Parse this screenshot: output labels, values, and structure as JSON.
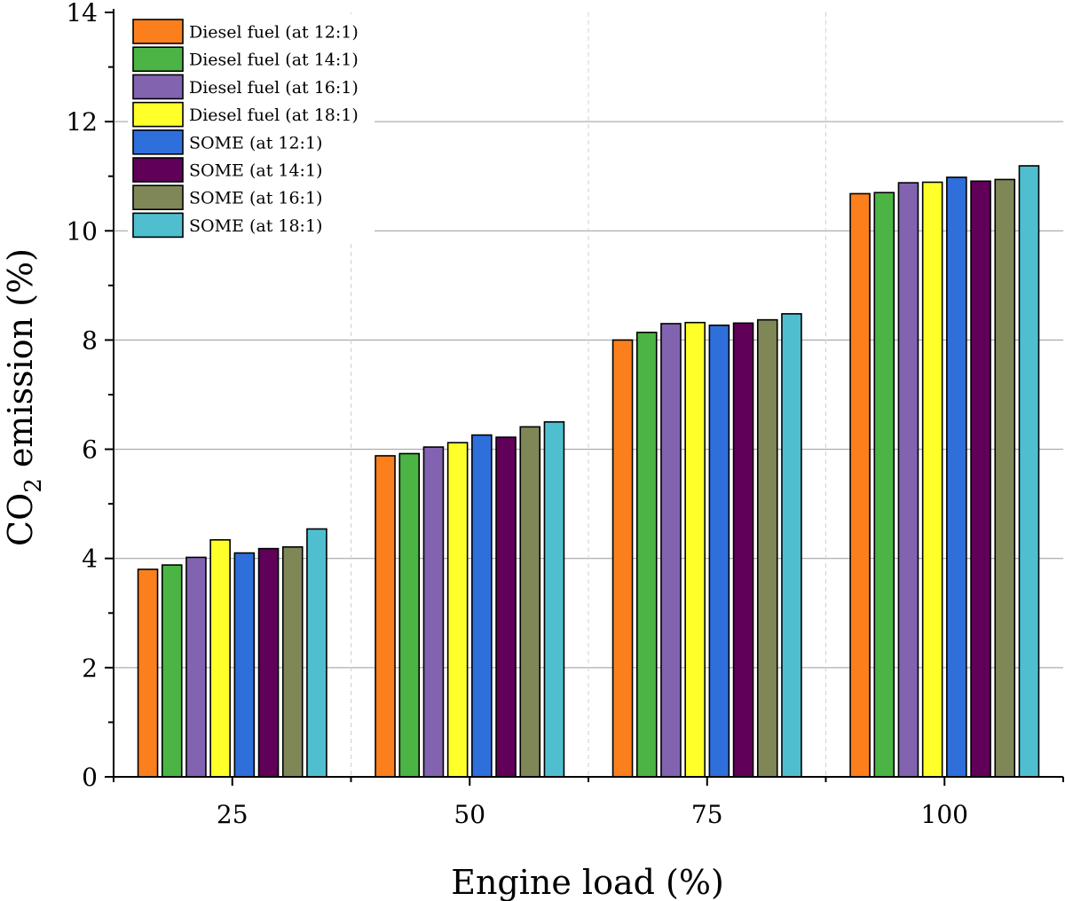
{
  "chart_data": {
    "type": "bar",
    "title": "",
    "xlabel": "Engine load (%)",
    "ylabel_main": "CO",
    "ylabel_sub": "2",
    "ylabel_rest": " emission (%)",
    "categories": [
      "25",
      "50",
      "75",
      "100"
    ],
    "ylim": [
      0,
      14
    ],
    "yticks": [
      "0",
      "2",
      "4",
      "6",
      "8",
      "10",
      "12",
      "14"
    ],
    "grid": true,
    "legend_position": "top-left",
    "series": [
      {
        "name": "Diesel fuel (at 12:1)",
        "color": "#fb7f1c",
        "values": [
          3.8,
          5.88,
          8.0,
          10.68
        ]
      },
      {
        "name": "Diesel fuel (at 14:1)",
        "color": "#4bb444",
        "values": [
          3.88,
          5.92,
          8.14,
          10.7
        ]
      },
      {
        "name": "Diesel fuel (at 16:1)",
        "color": "#8163b0",
        "values": [
          4.02,
          6.04,
          8.3,
          10.88
        ]
      },
      {
        "name": "Diesel fuel (at 18:1)",
        "color": "#ffff29",
        "values": [
          4.34,
          6.12,
          8.32,
          10.89
        ]
      },
      {
        "name": "SOME (at 12:1)",
        "color": "#2f6fdb",
        "values": [
          4.1,
          6.26,
          8.27,
          10.98
        ]
      },
      {
        "name": "SOME (at 14:1)",
        "color": "#600058",
        "values": [
          4.18,
          6.22,
          8.31,
          10.91
        ]
      },
      {
        "name": "SOME (at 16:1)",
        "color": "#7f8757",
        "values": [
          4.21,
          6.41,
          8.37,
          10.94
        ]
      },
      {
        "name": "SOME (at 18:1)",
        "color": "#4fbfcf",
        "values": [
          4.54,
          6.5,
          8.48,
          11.19
        ]
      }
    ]
  }
}
